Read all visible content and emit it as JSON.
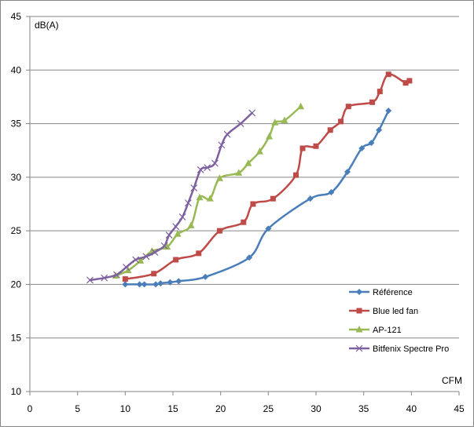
{
  "chart_data": {
    "type": "line",
    "title": "",
    "xlabel": "CFM",
    "ylabel": "dB(A)",
    "xlim": [
      0,
      45
    ],
    "ylim": [
      10,
      45
    ],
    "xticks": [
      0,
      5,
      10,
      15,
      20,
      25,
      30,
      35,
      40,
      45
    ],
    "yticks": [
      10,
      15,
      20,
      25,
      30,
      35,
      40,
      45
    ],
    "grid": "horizontal",
    "legend_position": "bottom-right",
    "series": [
      {
        "name": "Référence",
        "color": "#4a7ebb",
        "marker": "diamond",
        "x": [
          10.0,
          11.5,
          12.0,
          13.2,
          13.7,
          14.7,
          15.6,
          18.4,
          23.0,
          25.0,
          29.4,
          31.6,
          33.3,
          34.8,
          35.8,
          36.6,
          37.6
        ],
        "y": [
          20.0,
          20.0,
          20.0,
          20.0,
          20.1,
          20.2,
          20.3,
          20.7,
          22.5,
          25.2,
          28.0,
          28.6,
          30.5,
          32.7,
          33.2,
          34.4,
          36.2
        ]
      },
      {
        "name": "Blue led fan",
        "color": "#be4b48",
        "marker": "square",
        "x": [
          10.0,
          13.0,
          15.3,
          17.7,
          19.9,
          22.4,
          23.4,
          25.5,
          27.9,
          28.6,
          30.0,
          31.5,
          32.6,
          33.4,
          35.9,
          36.7,
          37.6,
          39.4,
          39.8
        ],
        "y": [
          20.5,
          21.0,
          22.3,
          22.9,
          25.0,
          25.8,
          27.5,
          28.0,
          30.2,
          32.7,
          32.9,
          34.4,
          35.2,
          36.6,
          37.0,
          38.0,
          39.6,
          38.8,
          39.0
        ],
        "draw_order": "free-curve"
      },
      {
        "name": "AP-121",
        "color": "#98b954",
        "marker": "triangle",
        "x": [
          9.0,
          10.3,
          11.6,
          12.8,
          14.4,
          15.5,
          16.9,
          17.8,
          18.9,
          19.9,
          21.9,
          22.9,
          24.1,
          25.1,
          25.7,
          26.7,
          28.4
        ],
        "y": [
          20.8,
          21.3,
          22.2,
          23.1,
          23.5,
          24.7,
          25.5,
          28.1,
          28.0,
          29.9,
          30.4,
          31.3,
          32.4,
          33.8,
          35.1,
          35.3,
          36.6
        ]
      },
      {
        "name": "Bitfenix Spectre Pro",
        "color": "#7d60a0",
        "marker": "x",
        "x": [
          6.3,
          7.8,
          9.1,
          10.1,
          11.1,
          12.2,
          13.1,
          14.1,
          14.6,
          15.3,
          16.0,
          16.6,
          17.2,
          17.9,
          18.6,
          19.4,
          20.1,
          20.7,
          22.1,
          23.3
        ],
        "y": [
          20.4,
          20.6,
          20.9,
          21.6,
          22.3,
          22.6,
          23.0,
          23.6,
          24.6,
          25.4,
          26.3,
          27.6,
          29.0,
          30.7,
          30.9,
          31.3,
          33.0,
          34.0,
          35.0,
          36.0
        ]
      }
    ]
  }
}
